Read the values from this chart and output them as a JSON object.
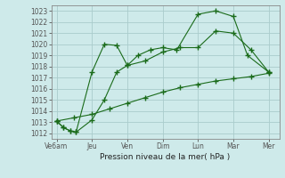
{
  "background_color": "#ceeaea",
  "grid_color": "#aacccc",
  "line_color": "#1a6b1a",
  "title": "Pression niveau de la mer( hPa )",
  "xlabels": [
    "Ve6am",
    "Jeu",
    "Ven",
    "Dim",
    "Lun",
    "Mar",
    "Mer"
  ],
  "xtick_positions": [
    0,
    1,
    2,
    3,
    4,
    5,
    6
  ],
  "ylim": [
    1011.5,
    1023.5
  ],
  "yticks": [
    1012,
    1013,
    1014,
    1015,
    1016,
    1017,
    1018,
    1019,
    1020,
    1021,
    1022,
    1023
  ],
  "series1_x": [
    0.0,
    0.2,
    0.4,
    0.55,
    1.0,
    1.35,
    1.7,
    2.0,
    2.3,
    2.65,
    3.0,
    3.4,
    4.0,
    4.5,
    5.0,
    5.4,
    6.0
  ],
  "series1_y": [
    1013.1,
    1012.5,
    1012.2,
    1012.1,
    1017.5,
    1020.0,
    1019.9,
    1018.1,
    1019.0,
    1019.5,
    1019.7,
    1019.5,
    1022.7,
    1023.0,
    1022.5,
    1019.0,
    1017.5
  ],
  "series2_x": [
    0.0,
    0.2,
    0.4,
    0.55,
    1.0,
    1.35,
    1.7,
    2.0,
    2.5,
    3.0,
    3.5,
    4.0,
    4.5,
    5.0,
    5.5,
    6.0
  ],
  "series2_y": [
    1013.1,
    1012.5,
    1012.2,
    1012.1,
    1013.2,
    1015.0,
    1017.5,
    1018.1,
    1018.5,
    1019.3,
    1019.7,
    1019.7,
    1021.2,
    1021.0,
    1019.5,
    1017.5
  ],
  "series3_x": [
    0.0,
    0.5,
    1.0,
    1.5,
    2.0,
    2.5,
    3.0,
    3.5,
    4.0,
    4.5,
    5.0,
    5.5,
    6.0
  ],
  "series3_y": [
    1013.1,
    1013.4,
    1013.7,
    1014.2,
    1014.7,
    1015.2,
    1015.7,
    1016.1,
    1016.4,
    1016.7,
    1016.9,
    1017.1,
    1017.4
  ]
}
